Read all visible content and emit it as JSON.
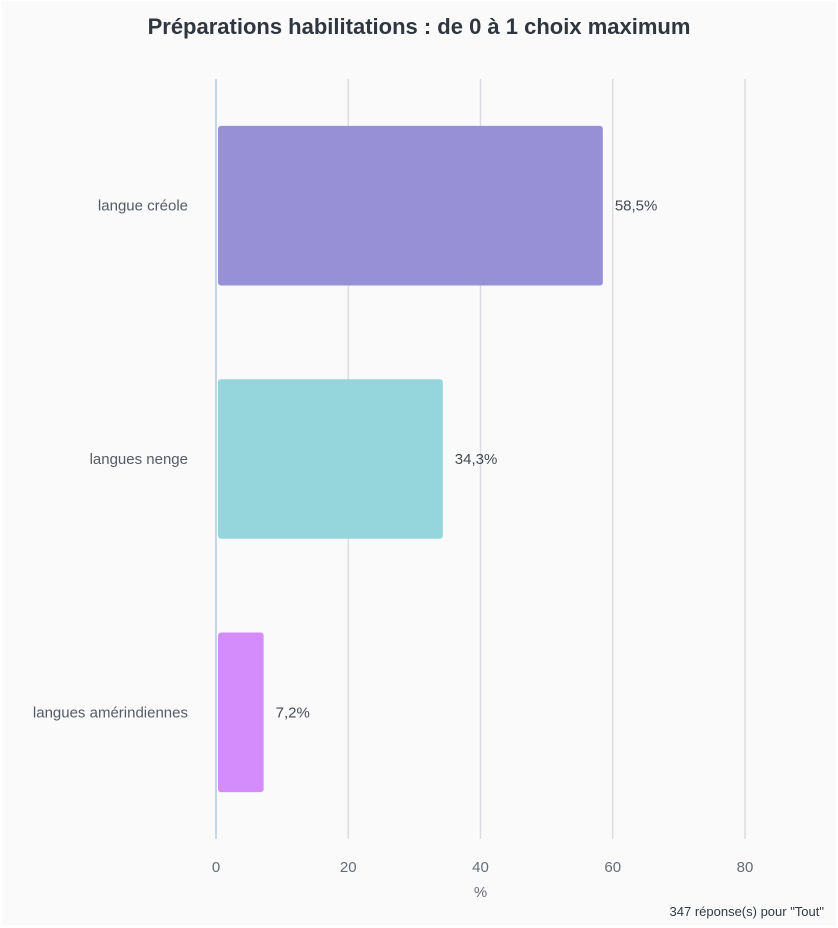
{
  "chart_data": {
    "type": "bar",
    "orientation": "horizontal",
    "title": "Préparations habilitations : de 0 à 1 choix maximum",
    "categories": [
      "langue créole",
      "langues nenge",
      "langues amérindiennes"
    ],
    "values": [
      58.5,
      34.3,
      7.2
    ],
    "value_labels": [
      "58,5%",
      "34,3%",
      "7,2%"
    ],
    "colors": [
      "#9790d6",
      "#95d5dc",
      "#d48bfc"
    ],
    "xlabel": "%",
    "xlim": [
      0,
      80
    ],
    "x_ticks": [
      0,
      20,
      40,
      60,
      80
    ],
    "grid": true
  },
  "footer": {
    "note": "347 réponse(s) pour \"Tout\""
  }
}
